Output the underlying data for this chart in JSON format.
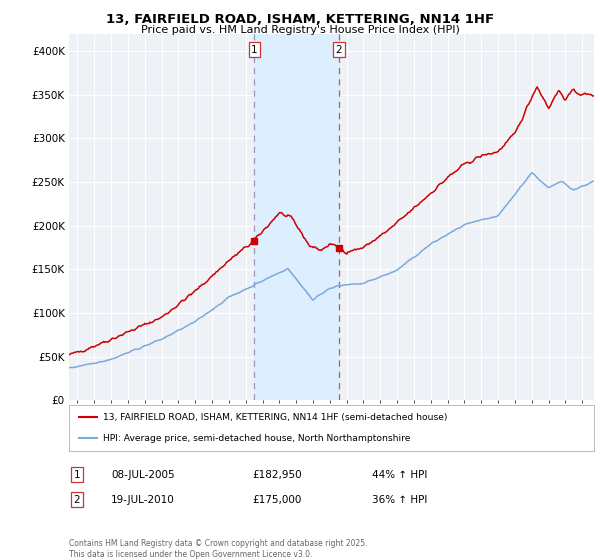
{
  "title1": "13, FAIRFIELD ROAD, ISHAM, KETTERING, NN14 1HF",
  "title2": "Price paid vs. HM Land Registry's House Price Index (HPI)",
  "legend_line1": "13, FAIRFIELD ROAD, ISHAM, KETTERING, NN14 1HF (semi-detached house)",
  "legend_line2": "HPI: Average price, semi-detached house, North Northamptonshire",
  "annotation1_label": "1",
  "annotation1_date": "08-JUL-2005",
  "annotation1_price": "£182,950",
  "annotation1_hpi": "44% ↑ HPI",
  "annotation2_label": "2",
  "annotation2_date": "19-JUL-2010",
  "annotation2_price": "£175,000",
  "annotation2_hpi": "36% ↑ HPI",
  "footer": "Contains HM Land Registry data © Crown copyright and database right 2025.\nThis data is licensed under the Open Government Licence v3.0.",
  "sale1_x": 2005.52,
  "sale1_y": 182950,
  "sale2_x": 2010.54,
  "sale2_y": 175000,
  "vline1_x": 2005.52,
  "vline2_x": 2010.54,
  "shade_x1": 2005.52,
  "shade_x2": 2010.54,
  "red_color": "#cc0000",
  "blue_color": "#7aaadd",
  "shade_color": "#ddeeff",
  "ylim": [
    0,
    420000
  ],
  "xlim_start": 1994.5,
  "xlim_end": 2025.7
}
